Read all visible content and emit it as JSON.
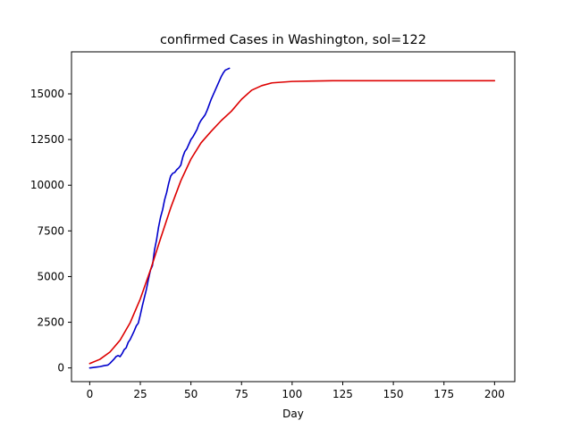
{
  "chart_data": {
    "type": "line",
    "title": "confirmed Cases in Washington, sol=122",
    "xlabel": "Day",
    "ylabel": "",
    "xlim": [
      -9,
      210
    ],
    "ylim": [
      -750,
      17300
    ],
    "x_ticks": [
      0,
      25,
      50,
      75,
      100,
      125,
      150,
      175,
      200
    ],
    "y_ticks": [
      0,
      2500,
      5000,
      7500,
      10000,
      12500,
      15000
    ],
    "grid": false,
    "legend": "none",
    "series": [
      {
        "color": "#0000cc",
        "x": [
          0,
          3,
          5,
          7,
          9,
          10,
          12,
          13,
          14,
          15,
          16,
          17,
          18,
          19,
          20,
          22,
          23,
          24,
          25,
          26,
          27,
          28,
          29,
          30,
          31,
          32,
          33,
          34,
          35,
          36,
          37,
          38,
          39,
          40,
          41,
          42,
          43,
          44,
          45,
          46,
          47,
          48,
          49,
          50,
          51,
          52,
          53,
          54,
          55,
          56,
          57,
          58,
          59,
          60,
          61,
          62,
          63,
          64,
          65,
          66,
          67,
          68,
          69
        ],
        "y": [
          0,
          40,
          70,
          120,
          160,
          250,
          480,
          620,
          680,
          620,
          780,
          1000,
          1100,
          1400,
          1560,
          2030,
          2300,
          2450,
          2900,
          3400,
          3850,
          4300,
          4850,
          5350,
          5600,
          6450,
          7000,
          7700,
          8250,
          8650,
          9200,
          9600,
          10100,
          10500,
          10650,
          10700,
          10850,
          10950,
          11100,
          11550,
          11850,
          12000,
          12250,
          12500,
          12650,
          12850,
          13050,
          13350,
          13550,
          13700,
          13850,
          14100,
          14400,
          14700,
          14950,
          15200,
          15450,
          15700,
          15950,
          16150,
          16300,
          16350,
          16400
        ]
      },
      {
        "color": "#dd0000",
        "x": [
          0,
          5,
          10,
          15,
          20,
          25,
          30,
          35,
          40,
          45,
          50,
          55,
          60,
          65,
          70,
          75,
          80,
          85,
          90,
          100,
          110,
          120,
          140,
          160,
          180,
          200
        ],
        "y": [
          240,
          470,
          870,
          1520,
          2480,
          3780,
          5360,
          7080,
          8760,
          10240,
          11430,
          12320,
          12950,
          13540,
          14050,
          14700,
          15200,
          15450,
          15600,
          15680,
          15700,
          15720,
          15720,
          15720,
          15720,
          15720
        ]
      }
    ]
  }
}
